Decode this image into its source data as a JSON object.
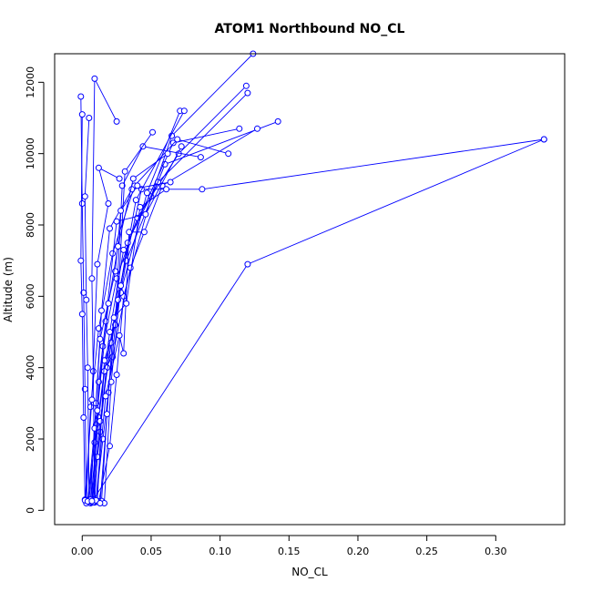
{
  "chart_data": {
    "type": "line",
    "title": "ATOM1 Northbound NO_CL",
    "xlabel": "NO_CL",
    "ylabel": "Altitude (m)",
    "xlim": [
      -0.02,
      0.35
    ],
    "ylim": [
      -400,
      12800
    ],
    "xticks": [
      0.0,
      0.05,
      0.1,
      0.15,
      0.2,
      0.25,
      0.3
    ],
    "xtick_labels": [
      "0.00",
      "0.05",
      "0.10",
      "0.15",
      "0.20",
      "0.25",
      "0.30"
    ],
    "yticks": [
      0,
      2000,
      4000,
      6000,
      8000,
      10000,
      12000
    ],
    "ytick_labels": [
      "0",
      "2000",
      "4000",
      "6000",
      "8000",
      "10000",
      "12000"
    ],
    "grid": false,
    "colors": {
      "series": "#0000ff",
      "axes": "#000000",
      "background": "#ffffff"
    },
    "series": [
      {
        "points": [
          [
            0.012,
            250
          ],
          [
            0.02,
            1800
          ],
          [
            0.025,
            3800
          ],
          [
            0.03,
            6000
          ],
          [
            0.05,
            8800
          ],
          [
            0.065,
            10500
          ],
          [
            0.124,
            12800
          ]
        ]
      },
      {
        "points": [
          [
            0.008,
            300
          ],
          [
            0.013,
            2200
          ],
          [
            0.018,
            4200
          ],
          [
            0.027,
            6200
          ],
          [
            0.043,
            9000
          ],
          [
            0.087,
            9000
          ],
          [
            0.335,
            10400
          ]
        ]
      },
      {
        "points": [
          [
            0.005,
            300
          ],
          [
            0.01,
            2400
          ],
          [
            0.015,
            4600
          ],
          [
            0.025,
            6500
          ],
          [
            0.04,
            8200
          ],
          [
            0.07,
            10000
          ],
          [
            0.119,
            11900
          ]
        ]
      },
      {
        "points": [
          [
            0.006,
            200
          ],
          [
            0.012,
            2600
          ],
          [
            0.02,
            5000
          ],
          [
            0.03,
            7300
          ],
          [
            0.055,
            9200
          ],
          [
            0.12,
            11700
          ]
        ]
      },
      {
        "points": [
          [
            0.009,
            250
          ],
          [
            0.011,
            1500
          ],
          [
            0.018,
            4000
          ],
          [
            0.032,
            7000
          ],
          [
            0.06,
            9700
          ],
          [
            0.142,
            10900
          ]
        ]
      },
      {
        "points": [
          [
            0.01,
            260
          ],
          [
            0.015,
            2000
          ],
          [
            0.022,
            4300
          ],
          [
            0.035,
            6800
          ],
          [
            0.058,
            9100
          ],
          [
            0.127,
            10700
          ]
        ]
      },
      {
        "points": [
          [
            0.004,
            280
          ],
          [
            0.009,
            1900
          ],
          [
            0.016,
            3900
          ],
          [
            0.028,
            6100
          ],
          [
            0.047,
            8900
          ],
          [
            0.071,
            11200
          ]
        ]
      },
      {
        "points": [
          [
            0.007,
            220
          ],
          [
            0.013,
            2500
          ],
          [
            0.021,
            4700
          ],
          [
            0.033,
            7500
          ],
          [
            0.066,
            10300
          ],
          [
            0.114,
            10700
          ]
        ]
      },
      {
        "points": [
          [
            0.008,
            300
          ],
          [
            0.12,
            6900
          ],
          [
            0.335,
            10400
          ]
        ]
      },
      {
        "points": [
          [
            0.003,
            260
          ],
          [
            0.002,
            3400
          ],
          [
            0.001,
            6100
          ],
          [
            0.0,
            8600
          ],
          [
            -0.001,
            11600
          ]
        ]
      },
      {
        "points": [
          [
            0.002,
            300
          ],
          [
            0.001,
            2600
          ],
          [
            0.0,
            5500
          ],
          [
            -0.001,
            7000
          ],
          [
            0.0,
            11100
          ]
        ]
      },
      {
        "points": [
          [
            0.005,
            250
          ],
          [
            0.004,
            4000
          ],
          [
            0.003,
            5900
          ],
          [
            0.002,
            8800
          ],
          [
            0.005,
            11000
          ]
        ]
      },
      {
        "points": [
          [
            0.009,
            220
          ],
          [
            0.008,
            3900
          ],
          [
            0.007,
            6500
          ],
          [
            0.009,
            12100
          ],
          [
            0.025,
            10900
          ]
        ]
      },
      {
        "points": [
          [
            0.011,
            240
          ],
          [
            0.016,
            4200
          ],
          [
            0.024,
            5200
          ],
          [
            0.029,
            9100
          ],
          [
            0.044,
            10200
          ],
          [
            0.086,
            9900
          ]
        ]
      },
      {
        "points": [
          [
            0.014,
            260
          ],
          [
            0.019,
            3300
          ],
          [
            0.026,
            5900
          ],
          [
            0.031,
            9500
          ],
          [
            0.051,
            10600
          ]
        ]
      },
      {
        "points": [
          [
            0.016,
            200
          ],
          [
            0.021,
            3600
          ],
          [
            0.028,
            6300
          ],
          [
            0.039,
            8700
          ],
          [
            0.074,
            11200
          ]
        ]
      },
      {
        "points": [
          [
            0.003,
            200
          ],
          [
            0.006,
            2900
          ],
          [
            0.012,
            5100
          ],
          [
            0.022,
            7200
          ],
          [
            0.038,
            9100
          ],
          [
            0.069,
            10400
          ],
          [
            0.106,
            10000
          ]
        ]
      },
      {
        "points": [
          [
            0.006,
            300
          ],
          [
            0.01,
            3000
          ],
          [
            0.014,
            5600
          ],
          [
            0.02,
            7900
          ],
          [
            0.036,
            9000
          ],
          [
            0.064,
            9200
          ]
        ]
      },
      {
        "points": [
          [
            0.008,
            230
          ],
          [
            0.012,
            3600
          ],
          [
            0.017,
            5300
          ],
          [
            0.025,
            8100
          ],
          [
            0.046,
            8300
          ],
          [
            0.072,
            10200
          ]
        ]
      },
      {
        "points": [
          [
            0.01,
            280
          ],
          [
            0.017,
            3200
          ],
          [
            0.027,
            4900
          ],
          [
            0.03,
            4400
          ],
          [
            0.034,
            7800
          ],
          [
            0.045,
            7800
          ]
        ]
      },
      {
        "points": [
          [
            0.002,
            280
          ],
          [
            0.007,
            3100
          ],
          [
            0.011,
            6900
          ],
          [
            0.019,
            8600
          ],
          [
            0.012,
            9600
          ],
          [
            0.027,
            9300
          ]
        ]
      },
      {
        "points": [
          [
            0.013,
            200
          ],
          [
            0.018,
            2700
          ],
          [
            0.023,
            5400
          ],
          [
            0.032,
            5800
          ],
          [
            0.042,
            8500
          ],
          [
            0.061,
            9000
          ]
        ]
      },
      {
        "points": [
          [
            0.004,
            250
          ],
          [
            0.009,
            2300
          ],
          [
            0.013,
            4800
          ],
          [
            0.024,
            6700
          ],
          [
            0.028,
            8400
          ],
          [
            0.04,
            9100
          ]
        ]
      },
      {
        "points": [
          [
            0.007,
            260
          ],
          [
            0.011,
            2800
          ],
          [
            0.019,
            5800
          ],
          [
            0.026,
            7400
          ],
          [
            0.037,
            9300
          ],
          [
            0.062,
            10000
          ]
        ]
      }
    ]
  }
}
